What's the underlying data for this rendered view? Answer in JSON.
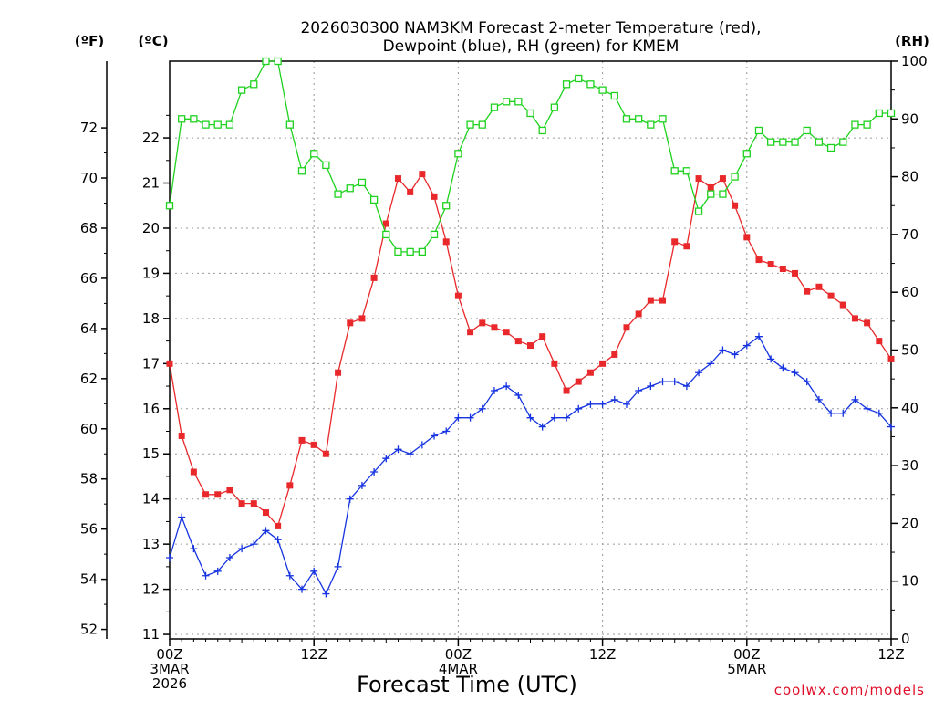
{
  "chart_data": {
    "type": "line",
    "title_line1": "2026030300 NAM3KM Forecast 2-meter Temperature (red),",
    "title_line2": "Dewpoint (blue), RH (green) for KMEM",
    "left_unit_f": "(ºF)",
    "left_unit_c": "(ºC)",
    "right_unit": "(RH)",
    "xlabel": "Forecast Time (UTC)",
    "credit": "coolwx.com/models",
    "x_ticks": [
      {
        "hour": 0,
        "lines": [
          "00Z",
          "3MAR",
          "2026"
        ]
      },
      {
        "hour": 12,
        "lines": [
          "12Z"
        ]
      },
      {
        "hour": 24,
        "lines": [
          "00Z",
          "4MAR"
        ]
      },
      {
        "hour": 36,
        "lines": [
          "12Z"
        ]
      },
      {
        "hour": 48,
        "lines": [
          "00Z",
          "5MAR"
        ]
      },
      {
        "hour": 60,
        "lines": [
          "12Z"
        ]
      }
    ],
    "x_range": [
      0,
      60
    ],
    "celsius_range": [
      10.9,
      23.7
    ],
    "celsius_ticks": [
      "11",
      "12",
      "13",
      "14",
      "15",
      "16",
      "17",
      "18",
      "19",
      "20",
      "21",
      "22"
    ],
    "fahrenheit_ticks": [
      "52",
      "54",
      "56",
      "58",
      "60",
      "62",
      "64",
      "66",
      "68",
      "70",
      "72"
    ],
    "rh_range": [
      0,
      100
    ],
    "rh_ticks": [
      "0",
      "10",
      "20",
      "30",
      "40",
      "50",
      "60",
      "70",
      "80",
      "90",
      "100"
    ],
    "grid": true,
    "series": [
      {
        "name": "Temperature (°C)",
        "color": "#e8282a",
        "marker": "filled-square",
        "values": [
          17.0,
          15.4,
          14.6,
          14.1,
          14.1,
          14.2,
          13.9,
          13.9,
          13.7,
          13.4,
          14.3,
          15.3,
          15.2,
          15.0,
          16.8,
          17.9,
          18.0,
          18.9,
          20.1,
          21.1,
          20.8,
          21.2,
          20.7,
          19.7,
          18.5,
          17.7,
          17.9,
          17.8,
          17.7,
          17.5,
          17.4,
          17.6,
          17.0,
          16.4,
          16.6,
          16.8,
          17.0,
          17.2,
          17.8,
          18.1,
          18.4,
          18.4,
          19.7,
          19.6,
          21.1,
          20.9,
          21.1,
          20.5,
          19.8,
          19.3,
          19.2,
          19.1,
          19.0,
          18.6,
          18.7,
          18.5,
          18.3,
          18.0,
          17.9,
          17.5,
          17.1
        ]
      },
      {
        "name": "Dewpoint (°C)",
        "color": "#1533e0",
        "marker": "plus",
        "values": [
          12.7,
          13.6,
          12.9,
          12.3,
          12.4,
          12.7,
          12.9,
          13.0,
          13.3,
          13.1,
          12.3,
          12.0,
          12.4,
          11.9,
          12.5,
          14.0,
          14.3,
          14.6,
          14.9,
          15.1,
          15.0,
          15.2,
          15.4,
          15.5,
          15.8,
          15.8,
          16.0,
          16.4,
          16.5,
          16.3,
          15.8,
          15.6,
          15.8,
          15.8,
          16.0,
          16.1,
          16.1,
          16.2,
          16.1,
          16.4,
          16.5,
          16.6,
          16.6,
          16.5,
          16.8,
          17.0,
          17.3,
          17.2,
          17.4,
          17.6,
          17.1,
          16.9,
          16.8,
          16.6,
          16.2,
          15.9,
          15.9,
          16.2,
          16.0,
          15.9,
          15.6
        ]
      },
      {
        "name": "RH (%)",
        "color": "#1fd21f",
        "marker": "open-square",
        "values": [
          75,
          90,
          90,
          89,
          89,
          89,
          95,
          96,
          100,
          100,
          89,
          81,
          84,
          82,
          77,
          78,
          79,
          76,
          70,
          67,
          67,
          67,
          70,
          75,
          84,
          89,
          89,
          92,
          93,
          93,
          91,
          88,
          92,
          96,
          97,
          96,
          95,
          94,
          90,
          90,
          89,
          90,
          81,
          81,
          74,
          77,
          77,
          80,
          84,
          88,
          86,
          86,
          86,
          88,
          86,
          85,
          86,
          89,
          89,
          91,
          91
        ]
      }
    ]
  }
}
